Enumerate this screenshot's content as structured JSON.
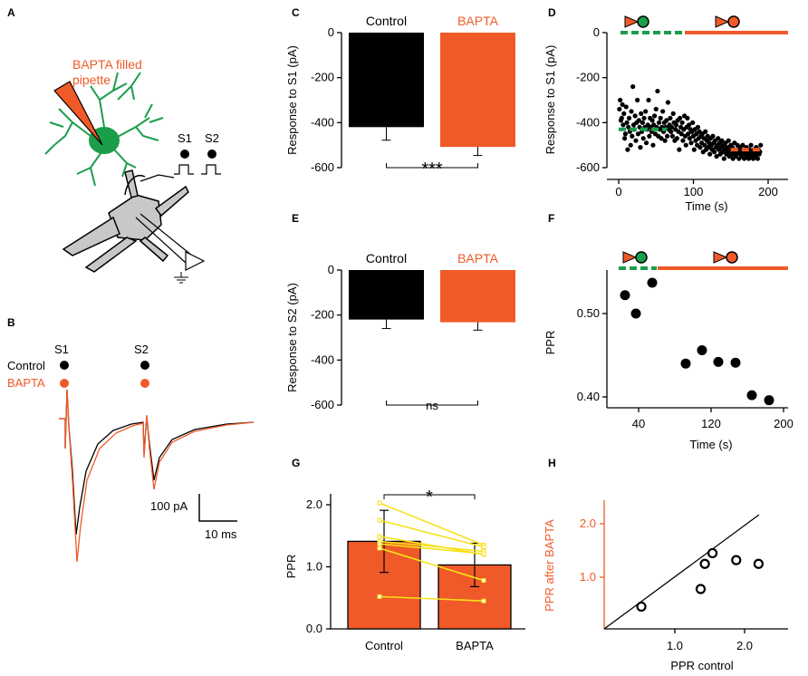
{
  "colors": {
    "black": "#000000",
    "orange": "#f05a28",
    "green": "#1a9e4a",
    "yellow": "#f7e21a",
    "grey": "#c8c8c8"
  },
  "panel_labels": {
    "A": "A",
    "B": "B",
    "C": "C",
    "D": "D",
    "E": "E",
    "F": "F",
    "G": "G",
    "H": "H"
  },
  "panel_a": {
    "pipette_label_line1": "BAPTA filled",
    "pipette_label_line2": "pipette",
    "s1": "S1",
    "s2": "S2"
  },
  "panel_b": {
    "s1": "S1",
    "s2": "S2",
    "control": "Control",
    "bapta": "BAPTA",
    "scale_y": "100 pA",
    "scale_x": "10 ms"
  },
  "chart_data": [
    {
      "id": "C",
      "type": "bar",
      "categories": [
        "Control",
        "BAPTA"
      ],
      "values": [
        -420,
        -508
      ],
      "errors": [
        58,
        38
      ],
      "ylabel": "Response to S1 (pA)",
      "ylim": [
        -600,
        0
      ],
      "yticks": [
        "0",
        "-200",
        "-400",
        "-600"
      ],
      "significance": "***"
    },
    {
      "id": "D",
      "type": "scatter",
      "xlabel": "Time (s)",
      "ylabel": "Response to S1 (pA)",
      "xlim": [
        -10,
        230
      ],
      "ylim": [
        -600,
        0
      ],
      "xticks": [
        "0",
        "100",
        "200"
      ],
      "yticks": [
        "0",
        "-200",
        "-400",
        "-600"
      ],
      "control_period": [
        0,
        65
      ],
      "bapta_period": [
        65,
        230
      ],
      "control_mean": -430,
      "bapta_mean": -520,
      "points": [
        [
          1,
          -340
        ],
        [
          2,
          -300
        ],
        [
          3,
          -390
        ],
        [
          4,
          -380
        ],
        [
          5,
          -320
        ],
        [
          6,
          -410
        ],
        [
          7,
          -360
        ],
        [
          8,
          -470
        ],
        [
          9,
          -450
        ],
        [
          10,
          -330
        ],
        [
          11,
          -400
        ],
        [
          12,
          -520
        ],
        [
          13,
          -420
        ],
        [
          14,
          -380
        ],
        [
          15,
          -440
        ],
        [
          16,
          -500
        ],
        [
          17,
          -350
        ],
        [
          18,
          -460
        ],
        [
          19,
          -240
        ],
        [
          20,
          -410
        ],
        [
          21,
          -430
        ],
        [
          22,
          -370
        ],
        [
          23,
          -480
        ],
        [
          24,
          -400
        ],
        [
          25,
          -300
        ],
        [
          26,
          -450
        ],
        [
          27,
          -390
        ],
        [
          28,
          -420
        ],
        [
          29,
          -510
        ],
        [
          30,
          -360
        ],
        [
          31,
          -440
        ],
        [
          32,
          -400
        ],
        [
          33,
          -470
        ],
        [
          34,
          -380
        ],
        [
          35,
          -420
        ],
        [
          36,
          -350
        ],
        [
          37,
          -490
        ],
        [
          38,
          -430
        ],
        [
          39,
          -410
        ],
        [
          40,
          -300
        ],
        [
          41,
          -460
        ],
        [
          42,
          -380
        ],
        [
          43,
          -420
        ],
        [
          44,
          -440
        ],
        [
          45,
          -390
        ],
        [
          46,
          -500
        ],
        [
          47,
          -410
        ],
        [
          48,
          -370
        ],
        [
          49,
          -450
        ],
        [
          50,
          -340
        ],
        [
          51,
          -420
        ],
        [
          52,
          -260
        ],
        [
          53,
          -460
        ],
        [
          54,
          -400
        ],
        [
          55,
          -430
        ],
        [
          56,
          -380
        ],
        [
          57,
          -470
        ],
        [
          58,
          -420
        ],
        [
          59,
          -350
        ],
        [
          60,
          -440
        ],
        [
          61,
          -400
        ],
        [
          62,
          -480
        ],
        [
          63,
          -420
        ],
        [
          64,
          -390
        ],
        [
          65,
          -460
        ],
        [
          66,
          -310
        ],
        [
          67,
          -430
        ],
        [
          68,
          -410
        ],
        [
          69,
          -380
        ],
        [
          70,
          -440
        ],
        [
          71,
          -420
        ],
        [
          72,
          -460
        ],
        [
          73,
          -360
        ],
        [
          74,
          -400
        ],
        [
          75,
          -480
        ],
        [
          76,
          -430
        ],
        [
          77,
          -410
        ],
        [
          78,
          -470
        ],
        [
          79,
          -390
        ],
        [
          80,
          -440
        ],
        [
          81,
          -520
        ],
        [
          82,
          -380
        ],
        [
          83,
          -420
        ],
        [
          84,
          -450
        ],
        [
          85,
          -400
        ],
        [
          86,
          -480
        ],
        [
          87,
          -430
        ],
        [
          88,
          -370
        ],
        [
          89,
          -460
        ],
        [
          90,
          -500
        ],
        [
          91,
          -420
        ],
        [
          92,
          -380
        ],
        [
          93,
          -450
        ],
        [
          94,
          -410
        ],
        [
          95,
          -470
        ],
        [
          96,
          -430
        ],
        [
          97,
          -490
        ],
        [
          98,
          -440
        ],
        [
          99,
          -400
        ],
        [
          100,
          -460
        ],
        [
          101,
          -520
        ],
        [
          102,
          -430
        ],
        [
          103,
          -480
        ],
        [
          104,
          -450
        ],
        [
          105,
          -500
        ],
        [
          106,
          -420
        ],
        [
          107,
          -470
        ],
        [
          108,
          -440
        ],
        [
          109,
          -510
        ],
        [
          110,
          -460
        ],
        [
          111,
          -490
        ],
        [
          112,
          -450
        ],
        [
          113,
          -530
        ],
        [
          114,
          -470
        ],
        [
          115,
          -500
        ],
        [
          116,
          -440
        ],
        [
          117,
          -520
        ],
        [
          118,
          -480
        ],
        [
          119,
          -460
        ],
        [
          120,
          -510
        ],
        [
          121,
          -490
        ],
        [
          122,
          -540
        ],
        [
          123,
          -470
        ],
        [
          124,
          -500
        ],
        [
          125,
          -520
        ],
        [
          126,
          -460
        ],
        [
          127,
          -490
        ],
        [
          128,
          -530
        ],
        [
          129,
          -480
        ],
        [
          130,
          -510
        ],
        [
          131,
          -550
        ],
        [
          132,
          -500
        ],
        [
          133,
          -470
        ],
        [
          134,
          -520
        ],
        [
          135,
          -490
        ],
        [
          136,
          -540
        ],
        [
          137,
          -510
        ],
        [
          138,
          -480
        ],
        [
          139,
          -530
        ],
        [
          140,
          -500
        ],
        [
          141,
          -560
        ],
        [
          142,
          -520
        ],
        [
          143,
          -490
        ],
        [
          144,
          -540
        ],
        [
          145,
          -510
        ],
        [
          146,
          -530
        ],
        [
          147,
          -480
        ],
        [
          148,
          -550
        ],
        [
          149,
          -520
        ],
        [
          150,
          -500
        ],
        [
          151,
          -540
        ],
        [
          152,
          -510
        ],
        [
          153,
          -560
        ],
        [
          154,
          -530
        ],
        [
          155,
          -490
        ],
        [
          156,
          -550
        ],
        [
          157,
          -520
        ],
        [
          158,
          -540
        ],
        [
          159,
          -500
        ],
        [
          160,
          -530
        ],
        [
          161,
          -560
        ],
        [
          162,
          -510
        ],
        [
          163,
          -540
        ],
        [
          164,
          -520
        ],
        [
          165,
          -550
        ],
        [
          166,
          -500
        ],
        [
          167,
          -530
        ],
        [
          168,
          -560
        ],
        [
          169,
          -520
        ],
        [
          170,
          -540
        ],
        [
          171,
          -510
        ],
        [
          172,
          -550
        ],
        [
          173,
          -530
        ],
        [
          174,
          -560
        ],
        [
          175,
          -520
        ],
        [
          176,
          -540
        ],
        [
          177,
          -500
        ],
        [
          178,
          -550
        ],
        [
          179,
          -530
        ],
        [
          180,
          -560
        ],
        [
          181,
          -520
        ],
        [
          182,
          -540
        ],
        [
          183,
          -550
        ],
        [
          184,
          -510
        ],
        [
          185,
          -530
        ],
        [
          186,
          -560
        ],
        [
          187,
          -520
        ],
        [
          188,
          -540
        ],
        [
          189,
          -530
        ],
        [
          190,
          -500
        ]
      ]
    },
    {
      "id": "E",
      "type": "bar",
      "categories": [
        "Control",
        "BAPTA"
      ],
      "values": [
        -220,
        -232
      ],
      "errors": [
        40,
        35
      ],
      "ylabel": "Response to S2 (pA)",
      "ylim": [
        -600,
        0
      ],
      "yticks": [
        "0",
        "-200",
        "-400",
        "-600"
      ],
      "significance": "ns"
    },
    {
      "id": "F",
      "type": "scatter",
      "xlabel": "Time (s)",
      "ylabel": "PPR",
      "xlim": [
        10,
        200
      ],
      "ylim": [
        0.38,
        0.55
      ],
      "xticks": [
        "40",
        "120",
        "200"
      ],
      "yticks": [
        "0.40",
        "0.50"
      ],
      "control_period": [
        25,
        60
      ],
      "bapta_period": [
        60,
        200
      ],
      "points": [
        [
          25,
          0.522
        ],
        [
          37,
          0.5
        ],
        [
          55,
          0.537
        ],
        [
          92,
          0.44
        ],
        [
          110,
          0.456
        ],
        [
          128,
          0.442
        ],
        [
          147,
          0.441
        ],
        [
          165,
          0.402
        ],
        [
          184,
          0.396
        ]
      ]
    },
    {
      "id": "G",
      "type": "bar",
      "categories": [
        "Control",
        "BAPTA"
      ],
      "values": [
        1.41,
        1.03
      ],
      "errors": [
        0.5,
        0.35
      ],
      "ylabel": "PPR",
      "ylim": [
        0,
        2.2
      ],
      "yticks": [
        "0.0",
        "1.0",
        "2.0"
      ],
      "significance": "*",
      "pairs": [
        [
          2.03,
          1.35
        ],
        [
          1.75,
          1.32
        ],
        [
          1.49,
          1.2
        ],
        [
          1.41,
          1.25
        ],
        [
          1.37,
          1.21
        ],
        [
          1.3,
          0.78
        ],
        [
          0.52,
          0.45
        ]
      ]
    },
    {
      "id": "H",
      "type": "scatter",
      "xlabel": "PPR control",
      "ylabel": "PPR after BAPTA",
      "xlim": [
        0,
        2.5
      ],
      "ylim": [
        0,
        2.5
      ],
      "xticks": [
        "1.0",
        "2.0"
      ],
      "yticks": [
        "1.0",
        "2.0"
      ],
      "points": [
        [
          0.52,
          0.45
        ],
        [
          1.37,
          0.78
        ],
        [
          1.43,
          1.25
        ],
        [
          1.54,
          1.45
        ],
        [
          1.88,
          1.32
        ],
        [
          2.2,
          1.25
        ]
      ],
      "unity_line": true
    }
  ]
}
